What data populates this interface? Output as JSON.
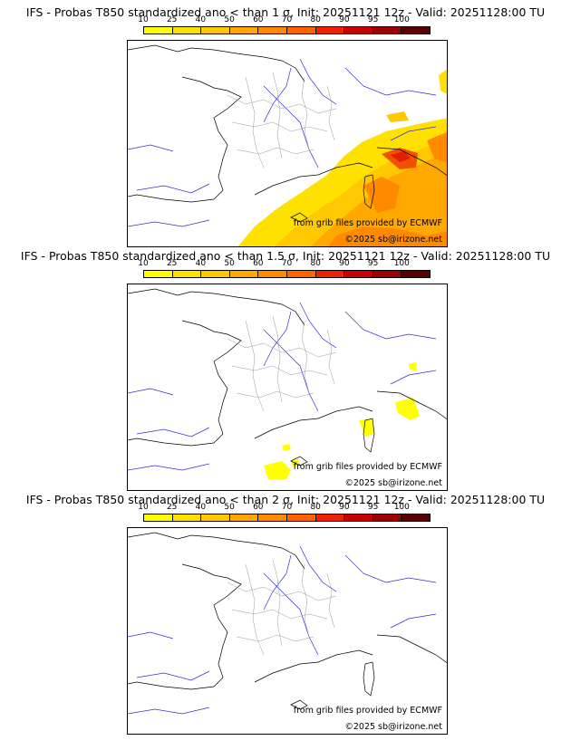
{
  "colorbar": {
    "ticks": [
      "10",
      "25",
      "40",
      "50",
      "60",
      "70",
      "80",
      "90",
      "95",
      "100"
    ],
    "colors": [
      "#ffff00",
      "#ffe100",
      "#ffc800",
      "#ffa800",
      "#ff8a00",
      "#ff6400",
      "#f02000",
      "#c80000",
      "#9c0000",
      "#5a0000"
    ]
  },
  "credits": {
    "source": "from grib files provided by ECMWF",
    "copyright": "©2025 sb@irizone.net"
  },
  "panels": [
    {
      "title": "IFS - Probas T850  standardized ano < than 1 σ, Init: 20251121 12z - Valid: 20251128:00 TU",
      "sigma": "1"
    },
    {
      "title": "IFS - Probas T850  standardized ano < than 1.5 σ, Init: 20251121 12z - Valid: 20251128:00 TU",
      "sigma": "1.5"
    },
    {
      "title": "IFS - Probas T850  standardized ano < than 2 σ, Init: 20251121 12z - Valid: 20251128:00 TU",
      "sigma": "2"
    }
  ]
}
